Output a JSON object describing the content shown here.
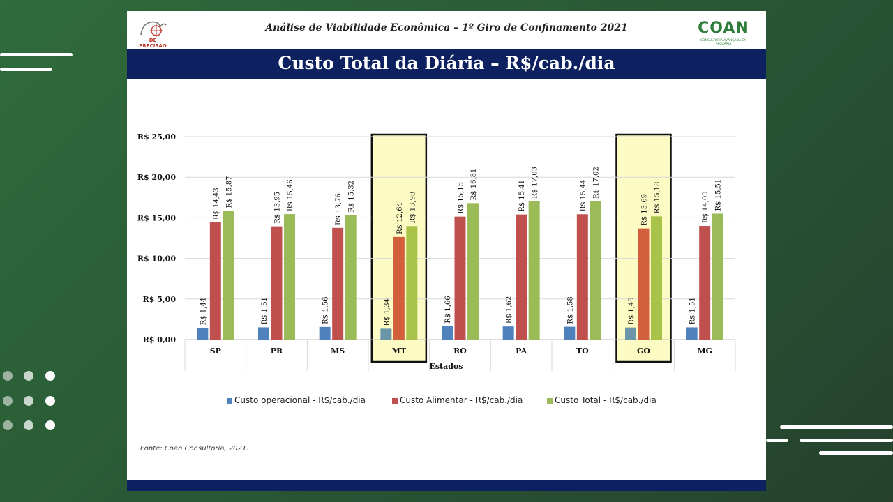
{
  "header": {
    "title": "Análise de Viabilidade Econômica – 1º Giro de Confinamento 2021",
    "logo_left": "DE PRECISÃO",
    "logo_right": "COAN",
    "logo_right_sub": "CONSULTORIA AVANÇADA EM PECUÁRIA"
  },
  "slide_title": "Custo Total da Diária – R$/cab./dia",
  "source_note": "Fonte: Coan Consultoria, 2021.",
  "chart_data": {
    "type": "bar",
    "title": "",
    "xlabel": "Estados",
    "ylabel": "",
    "ylim": [
      0,
      25
    ],
    "yticks": [
      "R$ 0,00",
      "R$ 5,00",
      "R$ 10,00",
      "R$ 15,00",
      "R$ 20,00",
      "R$ 25,00"
    ],
    "categories": [
      "SP",
      "PR",
      "MS",
      "MT",
      "RO",
      "PA",
      "TO",
      "GO",
      "MG"
    ],
    "highlighted": [
      "MT",
      "GO"
    ],
    "highlight_color": "#fdfbc4",
    "legend_position": "bottom",
    "series": [
      {
        "name": "Custo operacional - R$/cab./dia",
        "color": "#4f81bd",
        "values": [
          1.44,
          1.51,
          1.56,
          1.34,
          1.66,
          1.62,
          1.58,
          1.49,
          1.51
        ],
        "labels": [
          "R$ 1,44",
          "R$ 1,51",
          "R$ 1,56",
          "R$ 1,34",
          "R$ 1,66",
          "R$ 1,62",
          "R$ 1,58",
          "R$ 1,49",
          "R$ 1,51"
        ]
      },
      {
        "name": "Custo Alimentar - R$/cab./dia",
        "color": "#c0504d",
        "values": [
          14.43,
          13.95,
          13.76,
          12.64,
          15.15,
          15.41,
          15.44,
          13.69,
          14.0
        ],
        "labels": [
          "R$ 14,43",
          "R$ 13,95",
          "R$ 13,76",
          "R$ 12,64",
          "R$ 15,15",
          "R$ 15,41",
          "R$ 15,44",
          "R$ 13,69",
          "R$ 14,00"
        ]
      },
      {
        "name": "Custo Total - R$/cab./dia",
        "color": "#9bbb59",
        "values": [
          15.87,
          15.46,
          15.32,
          13.98,
          16.81,
          17.03,
          17.02,
          15.18,
          15.51
        ],
        "labels": [
          "R$ 15,87",
          "R$ 15,46",
          "R$ 15,32",
          "R$ 13,98",
          "R$ 16,81",
          "R$ 17,03",
          "R$ 17,02",
          "R$ 15,18",
          "R$ 15,51"
        ]
      }
    ]
  }
}
